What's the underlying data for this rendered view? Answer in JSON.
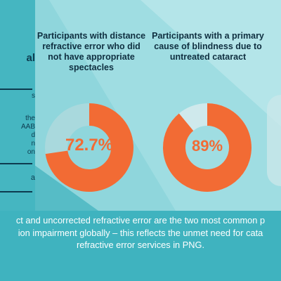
{
  "left_panel": {
    "heading_fragment": "al",
    "lines": [
      "s",
      "the",
      "AAB",
      "d",
      "n",
      "on",
      "a"
    ]
  },
  "stats": [
    {
      "heading": "Participants with distance\nrefractive error who did\nnot have appropriate\nspectacles",
      "value_label": "72.7%",
      "fraction": 0.727,
      "color": "#f26b34",
      "track_color": "#a9d9dd"
    },
    {
      "heading": "Participants with a primary\ncause of blindness due to\nuntreated cataract",
      "value_label": "89%",
      "fraction": 0.89,
      "color": "#f26b34",
      "track_color": "#cfe9ec"
    }
  ],
  "footer": {
    "line1": "ct and uncorrected refractive error are the two most common p",
    "line2": "ion impairment globally – this reflects the unmet need for cata",
    "line3": "refractive error services in PNG."
  }
}
